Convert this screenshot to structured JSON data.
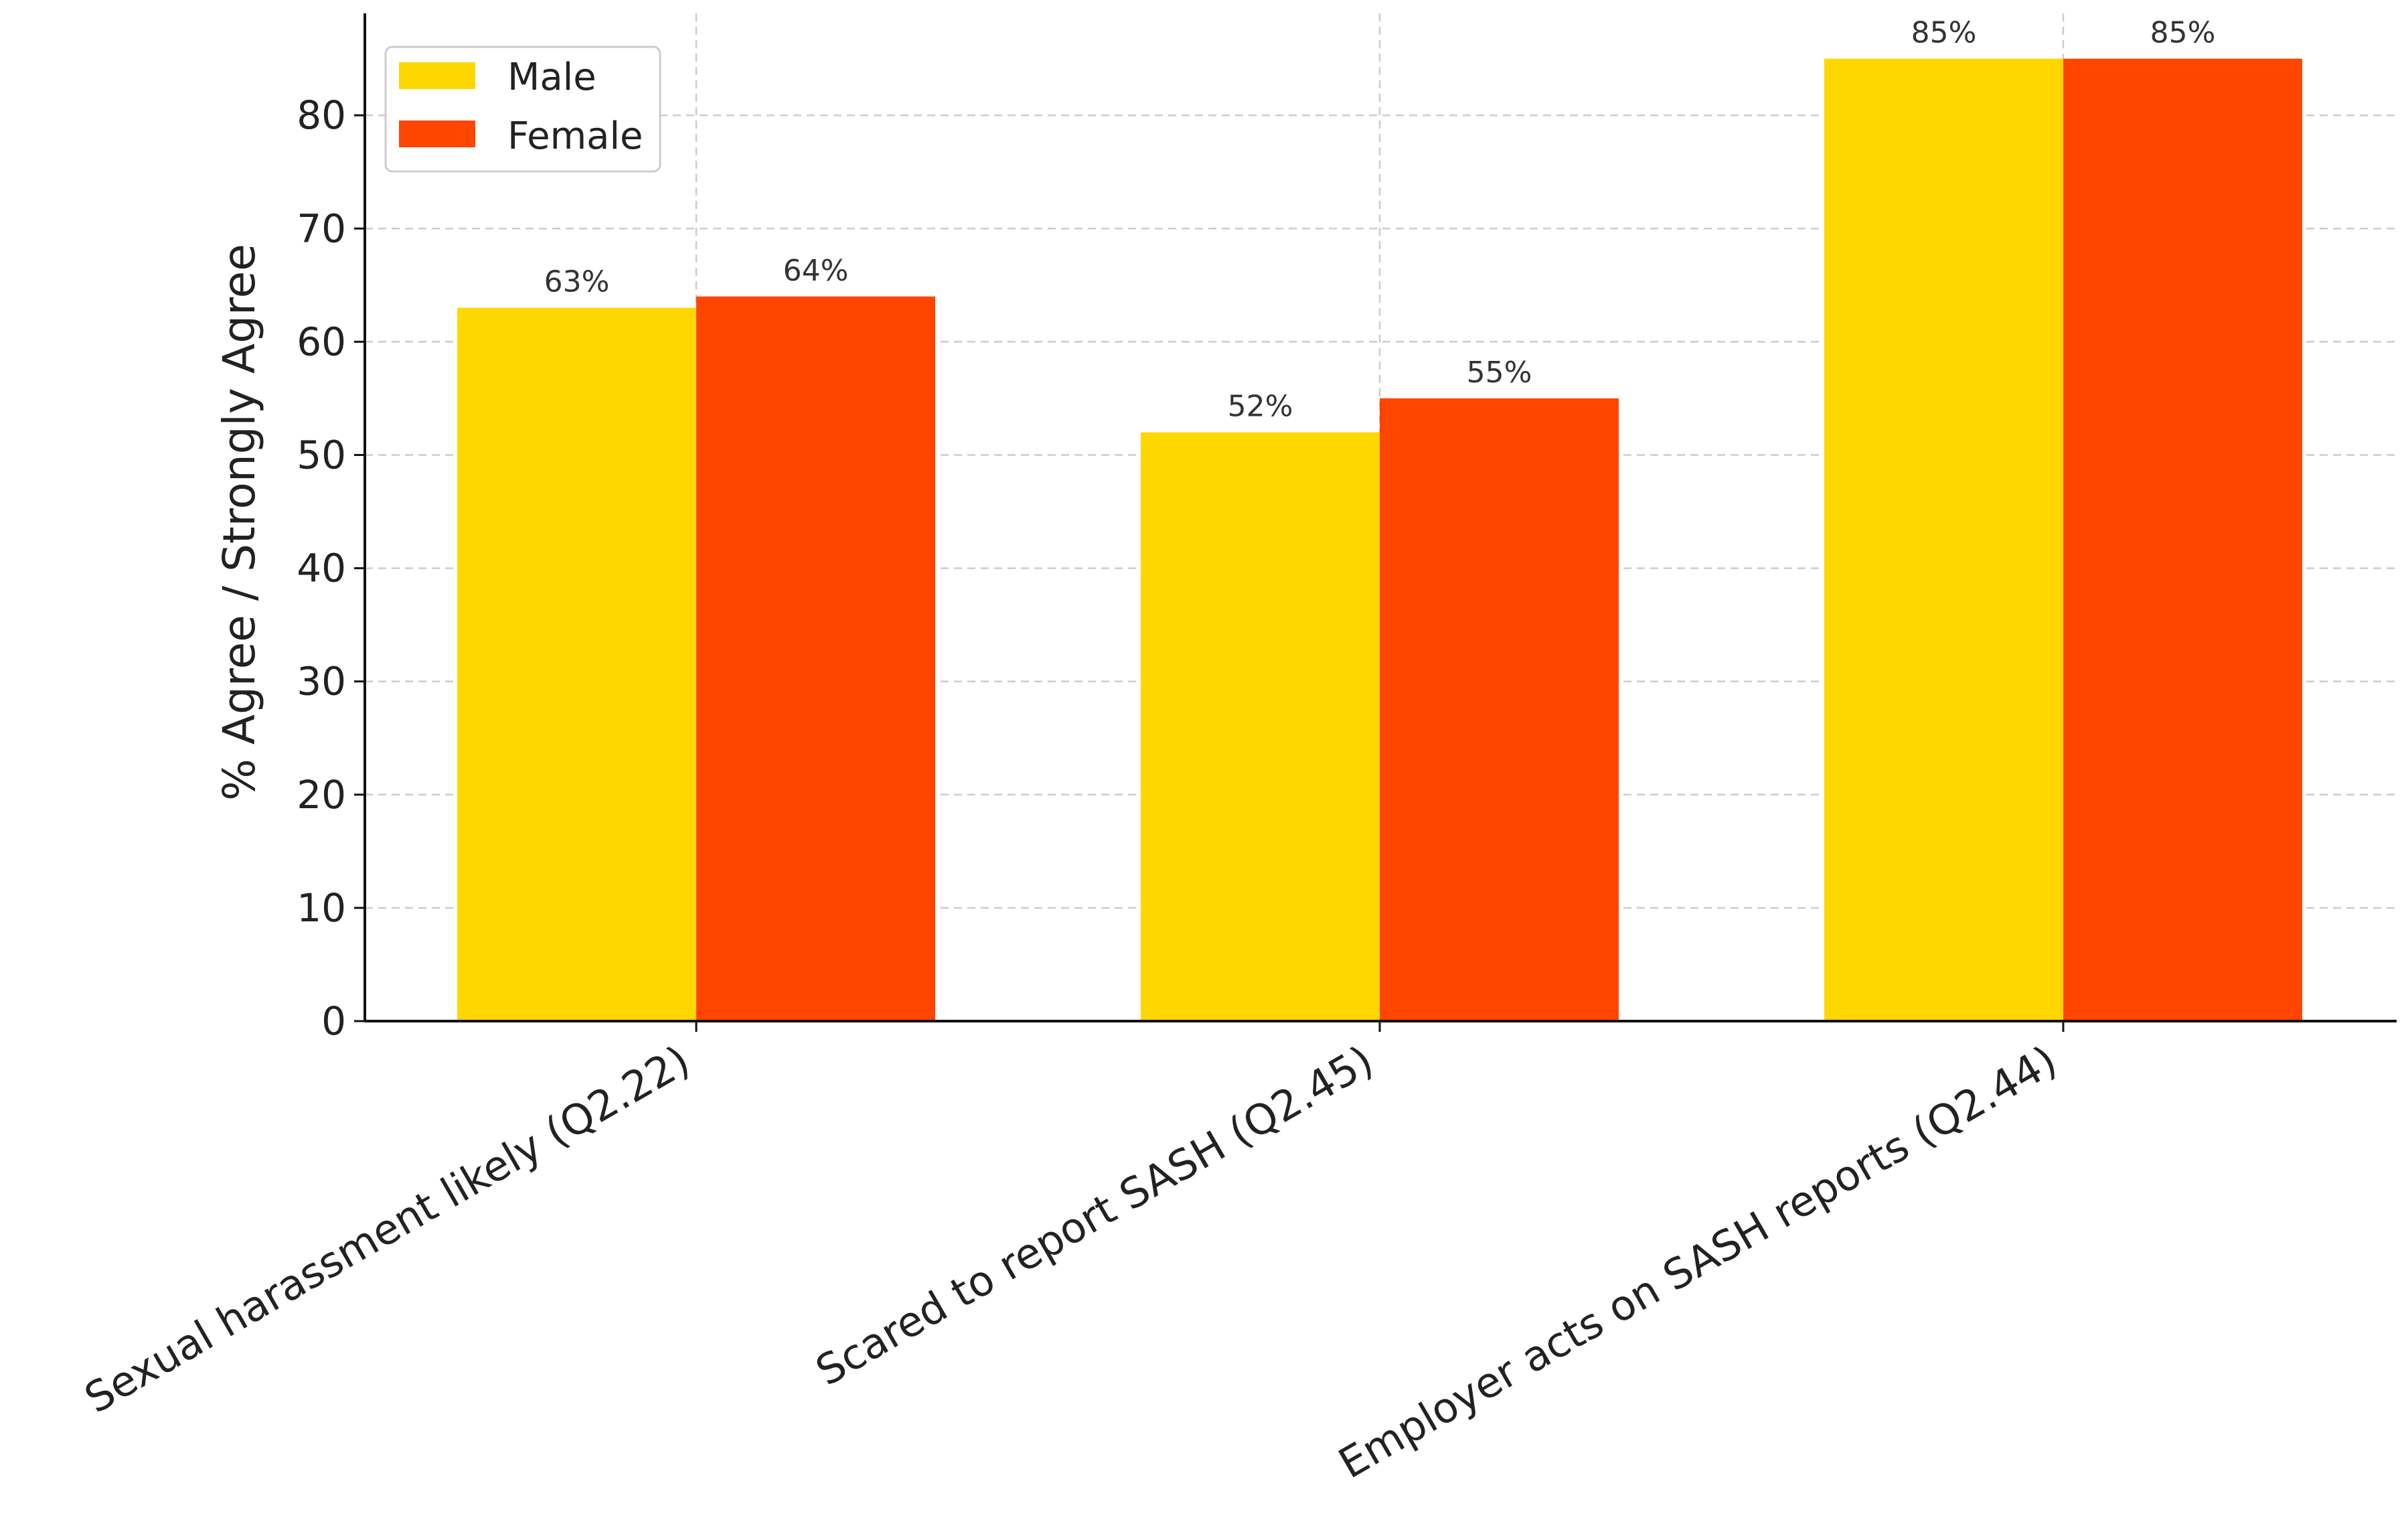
{
  "chart_data": {
    "type": "bar",
    "categories": [
      "Sexual harassment likely (Q2.22)",
      "Scared to report SASH (Q2.45)",
      "Employer acts on SASH reports (Q2.44)"
    ],
    "series": [
      {
        "name": "Male",
        "values": [
          63,
          52,
          85
        ],
        "labels": [
          "63%",
          "52%",
          "85%"
        ],
        "color": "#FFD700"
      },
      {
        "name": "Female",
        "values": [
          64,
          55,
          85
        ],
        "labels": [
          "64%",
          "55%",
          "85%"
        ],
        "color": "#FF4500"
      }
    ],
    "title": "",
    "xlabel": "",
    "ylabel": "% Agree / Strongly Agree",
    "ylim": [
      0,
      89
    ],
    "yticks": [
      0,
      10,
      20,
      30,
      40,
      50,
      60,
      70,
      80
    ],
    "grid": true,
    "legend": {
      "position": "top-left"
    }
  }
}
